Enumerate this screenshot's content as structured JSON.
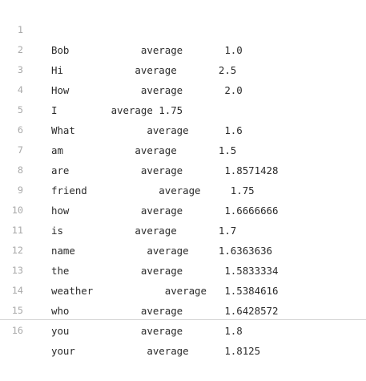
{
  "lines": [
    {
      "number": "1",
      "text": "Bob            average       1.0"
    },
    {
      "number": "2",
      "text": "Hi            average       2.5"
    },
    {
      "number": "3",
      "text": "How            average       2.0"
    },
    {
      "number": "4",
      "text": "I         average 1.75"
    },
    {
      "number": "5",
      "text": "What            average      1.6"
    },
    {
      "number": "6",
      "text": "am            average       1.5"
    },
    {
      "number": "7",
      "text": "are            average       1.8571428"
    },
    {
      "number": "8",
      "text": "friend            average     1.75"
    },
    {
      "number": "9",
      "text": "how            average       1.6666666"
    },
    {
      "number": "10",
      "text": "is            average       1.7"
    },
    {
      "number": "11",
      "text": "name            average     1.6363636"
    },
    {
      "number": "12",
      "text": "the            average       1.5833334"
    },
    {
      "number": "13",
      "text": "weather            average   1.5384616"
    },
    {
      "number": "14",
      "text": "who            average       1.6428572"
    },
    {
      "number": "15",
      "text": "you            average       1.8"
    },
    {
      "number": "16",
      "text": "your            average      1.8125"
    }
  ]
}
